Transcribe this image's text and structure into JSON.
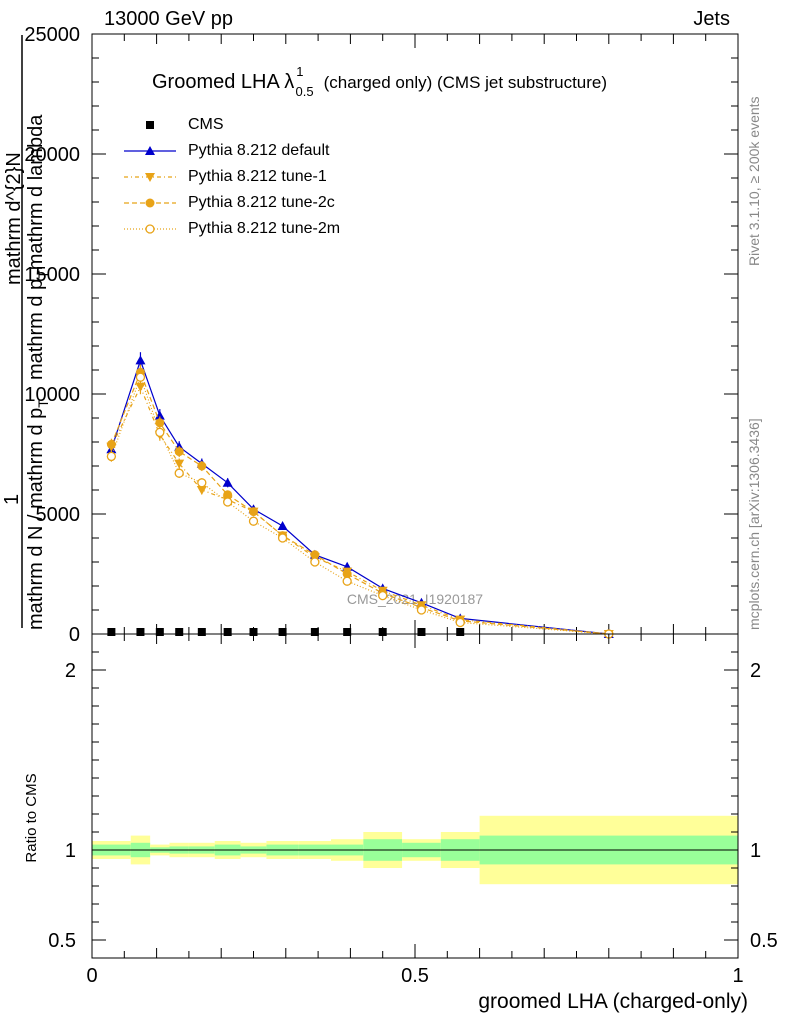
{
  "header": {
    "left": "13000 GeV pp",
    "right": "Jets"
  },
  "side": {
    "rivet": "Rivet 3.1.10, ≥ 200k events",
    "mcplots": "mcplots.cern.ch [arXiv:1306.3436]"
  },
  "chart_data": {
    "type": "line",
    "title_main": "Groomed LHA",
    "title_lambda": "λ",
    "title_sup": "1",
    "title_sub": "0.5",
    "title_rest": "(charged only) (CMS jet substructure)",
    "watermark": "CMS_2021_I1920187",
    "ylabel_parts": [
      "1",
      "mathrm d N / mathrm d p",
      "T",
      "mathrm d^{2}N",
      "mathrm d p",
      "T",
      "mathrm d lambda"
    ],
    "xlabel": "groomed LHA (charged-only)",
    "ratio_ylabel": "Ratio to CMS",
    "xlim": [
      0,
      1
    ],
    "ylim": [
      0,
      25000
    ],
    "yticks": [
      0,
      5000,
      10000,
      15000,
      20000,
      25000
    ],
    "xticks": [
      0,
      0.5,
      1
    ],
    "xticklabels": [
      "0",
      "0.5",
      "1"
    ],
    "ratio_ylim": [
      0.4,
      2.2
    ],
    "ratio_yticks": [
      0.5,
      1,
      2
    ],
    "ratio_yticklabels": [
      "0.5",
      "1",
      "2"
    ],
    "x": [
      0.03,
      0.075,
      0.105,
      0.135,
      0.17,
      0.21,
      0.25,
      0.295,
      0.345,
      0.395,
      0.45,
      0.51,
      0.57,
      0.8
    ],
    "bin_edges": [
      0,
      0.06,
      0.09,
      0.12,
      0.15,
      0.19,
      0.23,
      0.27,
      0.32,
      0.37,
      0.42,
      0.48,
      0.54,
      0.6,
      1.0
    ],
    "series": [
      {
        "name": "CMS",
        "marker": "square",
        "color": "#000000",
        "values": [
          0,
          0,
          0,
          0,
          0,
          0,
          0,
          0,
          0,
          0,
          0,
          0,
          0,
          0
        ]
      },
      {
        "name": "Pythia 8.212 default",
        "marker": "triangle-up",
        "color": "#0000cc",
        "dash": "",
        "values": [
          7700,
          11400,
          9100,
          7800,
          7100,
          6300,
          5200,
          4500,
          3300,
          2800,
          1900,
          1300,
          650,
          0
        ]
      },
      {
        "name": "Pythia 8.212 tune-1",
        "marker": "triangle-down",
        "color": "#e8a317",
        "dash": "4,3,1,3",
        "values": [
          7800,
          10300,
          8300,
          7100,
          6000,
          5600,
          5100,
          4100,
          3200,
          2600,
          1800,
          1200,
          600,
          0
        ]
      },
      {
        "name": "Pythia 8.212 tune-2c",
        "marker": "circle",
        "color": "#e8a317",
        "dash": "5,3",
        "values": [
          7900,
          10900,
          8800,
          7600,
          7000,
          5800,
          5100,
          4100,
          3300,
          2500,
          1700,
          1100,
          550,
          0
        ]
      },
      {
        "name": "Pythia 8.212 tune-2m",
        "marker": "circle-open",
        "color": "#e8a317",
        "dash": "1,2",
        "values": [
          7400,
          10700,
          8400,
          6700,
          6300,
          5500,
          4700,
          4000,
          3000,
          2200,
          1600,
          1000,
          480,
          0
        ]
      }
    ],
    "ratio_bands": {
      "yellow_half_width": [
        0.05,
        0.08,
        0.03,
        0.04,
        0.04,
        0.05,
        0.04,
        0.05,
        0.05,
        0.06,
        0.1,
        0.06,
        0.1,
        0.19
      ],
      "green_half_width": [
        0.03,
        0.04,
        0.015,
        0.02,
        0.02,
        0.03,
        0.02,
        0.03,
        0.03,
        0.03,
        0.06,
        0.04,
        0.06,
        0.08
      ]
    },
    "colors": {
      "band_yellow": "#ffff99",
      "band_green": "#99ff99"
    }
  }
}
